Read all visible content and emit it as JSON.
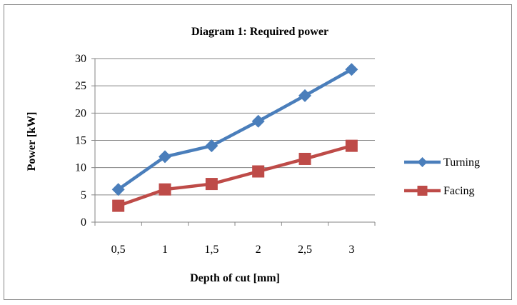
{
  "chart_data": {
    "type": "line",
    "title": "Diagram 1: Required power",
    "xlabel": "Depth of cut [mm]",
    "ylabel": "Power [kW]",
    "categories": [
      "0,5",
      "1",
      "1,5",
      "2",
      "2,5",
      "3"
    ],
    "ylim": [
      0,
      30
    ],
    "yticks": [
      "0",
      "5",
      "10",
      "15",
      "20",
      "25",
      "30"
    ],
    "grid": "horizontal",
    "legend_position": "right",
    "series": [
      {
        "name": "Turning",
        "values": [
          6,
          12,
          14,
          18.5,
          23.2,
          28
        ],
        "color": "#4a7ebb",
        "marker": "diamond"
      },
      {
        "name": "Facing",
        "values": [
          3,
          6,
          7,
          9.3,
          11.6,
          14
        ],
        "color": "#be4b48",
        "marker": "square"
      }
    ]
  }
}
